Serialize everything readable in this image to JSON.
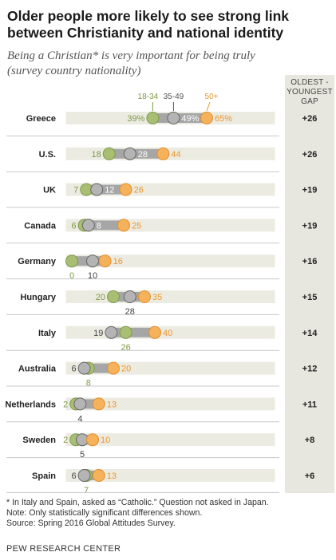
{
  "title": "Older people more likely to see strong link between Christianity and national identity",
  "subtitle": "Being a Christian* is very important for being truly (survey country nationality)",
  "gap_header": "OLDEST - YOUNGEST GAP",
  "colors": {
    "young": "#a8bf73",
    "mid": "#b4b4b4",
    "old": "#f6b25a",
    "young_text": "#7d9a45",
    "old_text": "#e8962e",
    "track": "#ecebe2",
    "gap_column": "#e8e7df"
  },
  "chart_data": {
    "type": "dot",
    "series": [
      {
        "name": "18-34",
        "values": [
          39,
          18,
          7,
          6,
          0,
          20,
          26,
          8,
          2,
          2,
          7
        ]
      },
      {
        "name": "35-49",
        "values": [
          49,
          28,
          12,
          8,
          10,
          28,
          19,
          6,
          4,
          5,
          6
        ]
      },
      {
        "name": "50+",
        "values": [
          65,
          44,
          26,
          25,
          16,
          35,
          40,
          20,
          13,
          10,
          13
        ]
      }
    ],
    "categories": [
      "Greece",
      "U.S.",
      "UK",
      "Canada",
      "Germany",
      "Hungary",
      "Italy",
      "Australia",
      "Netherlands",
      "Sweden",
      "Spain"
    ],
    "gap": [
      "+26",
      "+26",
      "+19",
      "+19",
      "+16",
      "+15",
      "+14",
      "+12",
      "+11",
      "+8",
      "+6"
    ],
    "value_suffix_first_row": "%",
    "xlim": [
      0,
      100
    ]
  },
  "notes": [
    "* In Italy and Spain, asked as “Catholic.” Question not asked in Japan.",
    "Note: Only statistically significant differences shown.",
    "Source: Spring 2016 Global Attitudes Survey."
  ],
  "brand": "PEW RESEARCH CENTER"
}
